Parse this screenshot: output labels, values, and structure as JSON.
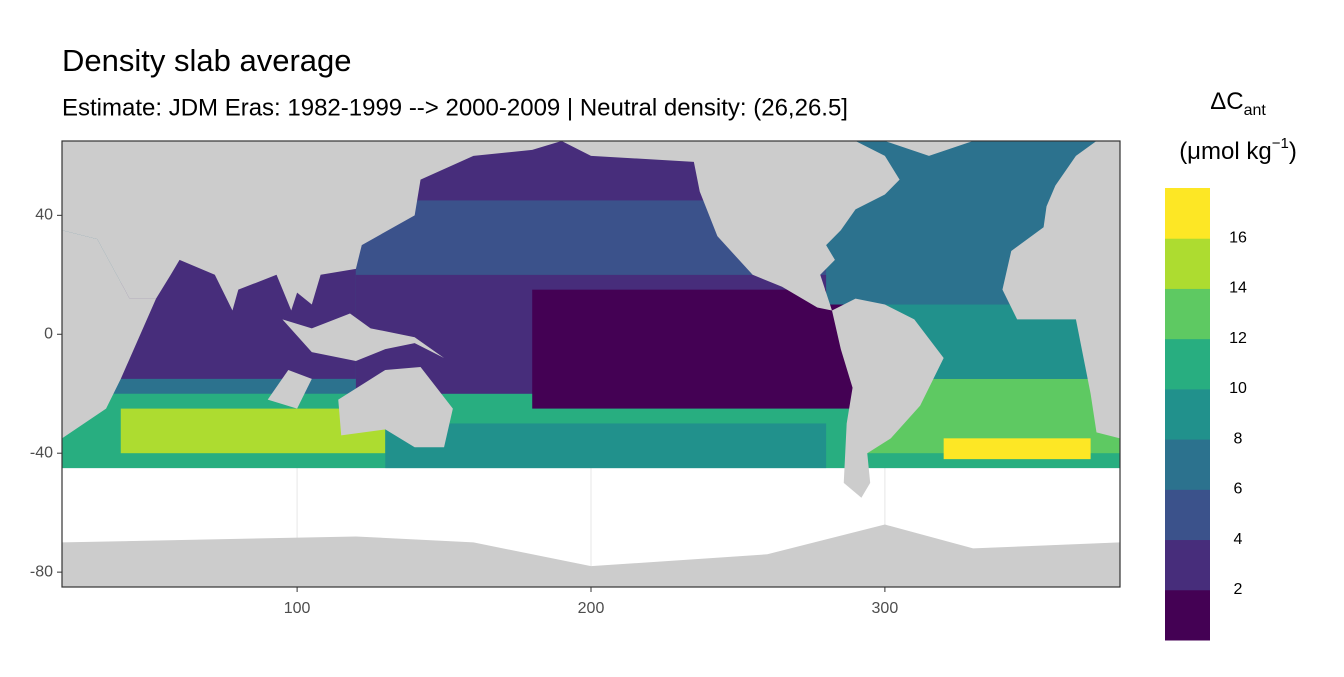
{
  "chart_data": {
    "type": "raster-map",
    "title": "Density slab average",
    "subtitle": "Estimate: JDM Eras: 1982-1999 --> 2000-2009 | Neutral density: (26,26.5]",
    "xlim": [
      20,
      380
    ],
    "xticks": [
      100,
      200,
      300
    ],
    "ylim": [
      -85,
      65
    ],
    "yticks": [
      40,
      0,
      -40,
      -80
    ],
    "grid": true,
    "legend": {
      "title": "ΔC",
      "title_sub": "ant",
      "unit": "(μmol kg",
      "unit_sup": "−1",
      "unit_end": ")",
      "lim": [
        0,
        18
      ],
      "breaks": [
        2,
        4,
        6,
        8,
        10,
        12,
        14,
        16
      ],
      "colors": [
        "#440154",
        "#472d7b",
        "#3b528b",
        "#2c728e",
        "#21918c",
        "#28ae80",
        "#5ec962",
        "#addc30",
        "#fde725"
      ]
    },
    "zones": [
      {
        "lon": [
          20,
          380
        ],
        "lat": [
          -45,
          65
        ],
        "value": 7
      },
      {
        "lon": [
          20,
          380
        ],
        "lat": [
          -45,
          -20
        ],
        "value": 11
      },
      {
        "lon": [
          40,
          130
        ],
        "lat": [
          -40,
          -25
        ],
        "value": 15
      },
      {
        "lon": [
          130,
          280
        ],
        "lat": [
          -45,
          -30
        ],
        "value": 9
      },
      {
        "lon": [
          40,
          120
        ],
        "lat": [
          -15,
          25
        ],
        "value": 3
      },
      {
        "lon": [
          120,
          290
        ],
        "lat": [
          20,
          45
        ],
        "value": 5
      },
      {
        "lon": [
          140,
          260
        ],
        "lat": [
          45,
          65
        ],
        "value": 3
      },
      {
        "lon": [
          120,
          290
        ],
        "lat": [
          -20,
          20
        ],
        "value": 3
      },
      {
        "lon": [
          180,
          290
        ],
        "lat": [
          -25,
          15
        ],
        "value": 1
      },
      {
        "lon": [
          290,
          380
        ],
        "lat": [
          -40,
          -15
        ],
        "value": 13
      },
      {
        "lon": [
          320,
          370
        ],
        "lat": [
          -42,
          -35
        ],
        "value": 17
      },
      {
        "lon": [
          280,
          340
        ],
        "lat": [
          10,
          50
        ],
        "value": 7
      },
      {
        "lon": [
          300,
          380
        ],
        "lat": [
          -15,
          10
        ],
        "value": 9
      }
    ]
  }
}
